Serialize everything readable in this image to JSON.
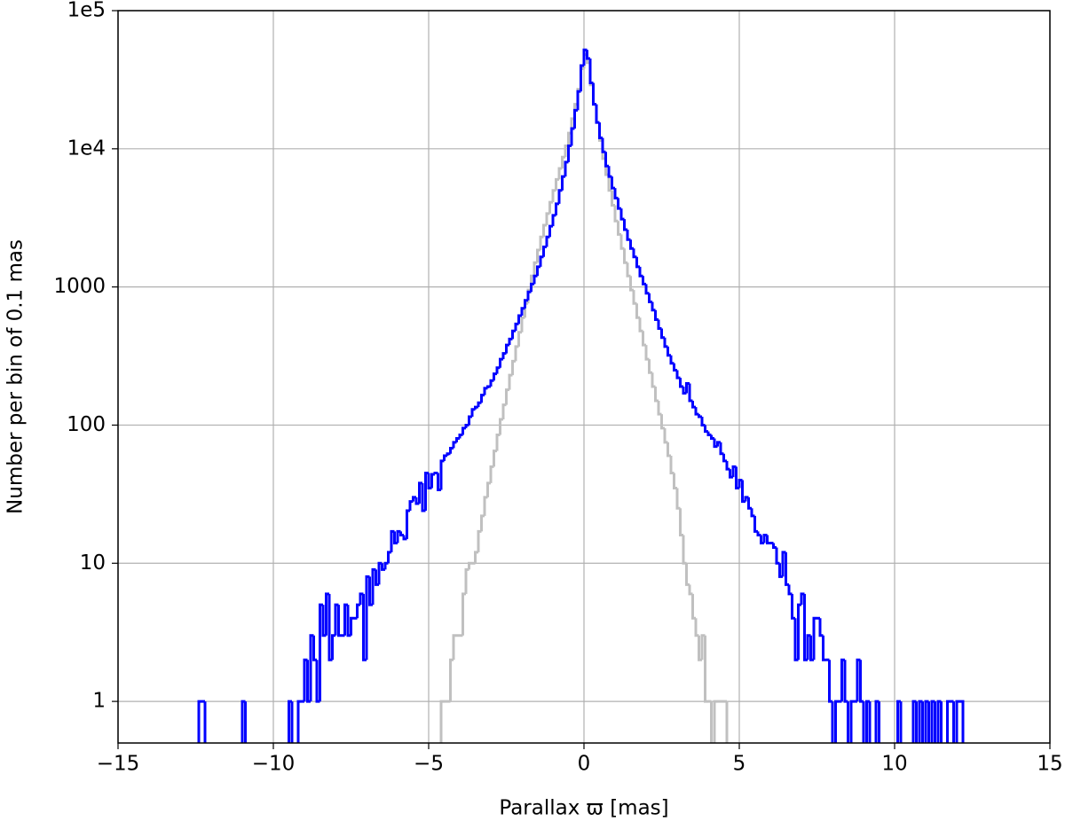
{
  "chart_data": {
    "type": "histogram",
    "x_label": "Parallax ϖ [mas]",
    "y_label": "Number per bin of 0.1 mas",
    "xlim": [
      -15,
      15
    ],
    "xticks": [
      {
        "value": -15,
        "label": "−15"
      },
      {
        "value": -10,
        "label": "−10"
      },
      {
        "value": -5,
        "label": "−5"
      },
      0,
      5,
      10,
      15
    ],
    "ylim": [
      0.5,
      100000
    ],
    "yticks": [
      1,
      10,
      100,
      1000,
      {
        "value": 10000,
        "label": "1e4"
      },
      {
        "value": 100000,
        "label": "1e5"
      }
    ],
    "y_scale": "log",
    "grid": true,
    "bins": [
      -12.5,
      -12.4,
      -12.3,
      -12.2,
      -12.1,
      -12.0,
      -11.9,
      -11.8,
      -11.7,
      -11.6,
      -11.5,
      -11.4,
      -11.3,
      -11.2,
      -11.1,
      -11.0,
      -10.9,
      -10.8,
      -10.7,
      -10.6,
      -10.5,
      -10.4,
      -10.3,
      -10.2,
      -10.1,
      -10.0,
      -9.9,
      -9.8,
      -9.7,
      -9.6,
      -9.5,
      -9.4,
      -9.3,
      -9.2,
      -9.1,
      -9.0,
      -8.9,
      -8.8,
      -8.7,
      -8.6,
      -8.5,
      -8.4,
      -8.3,
      -8.2,
      -8.1,
      -8.0,
      -7.9,
      -7.8,
      -7.7,
      -7.6,
      -7.5,
      -7.4,
      -7.3,
      -7.2,
      -7.1,
      -7.0,
      -6.9,
      -6.8,
      -6.7,
      -6.6,
      -6.5,
      -6.4,
      -6.3,
      -6.2,
      -6.1,
      -6.0,
      -5.9,
      -5.8,
      -5.7,
      -5.6,
      -5.5,
      -5.4,
      -5.3,
      -5.2,
      -5.1,
      -5.0,
      -4.9,
      -4.8,
      -4.7,
      -4.6,
      -4.5,
      -4.4,
      -4.3,
      -4.2,
      -4.1,
      -4.0,
      -3.9,
      -3.8,
      -3.7,
      -3.6,
      -3.5,
      -3.4,
      -3.3,
      -3.2,
      -3.1,
      -3.0,
      -2.9,
      -2.8,
      -2.7,
      -2.6,
      -2.5,
      -2.4,
      -2.3,
      -2.2,
      -2.1,
      -2.0,
      -1.9,
      -1.8,
      -1.7,
      -1.6,
      -1.5,
      -1.4,
      -1.3,
      -1.2,
      -1.1,
      -1.0,
      -0.9,
      -0.8,
      -0.7,
      -0.6,
      -0.5,
      -0.4,
      -0.3,
      -0.2,
      -0.1,
      0.0,
      0.1,
      0.2,
      0.3,
      0.4,
      0.5,
      0.6,
      0.7,
      0.8,
      0.9,
      1.0,
      1.1,
      1.2,
      1.3,
      1.4,
      1.5,
      1.6,
      1.7,
      1.8,
      1.9,
      2.0,
      2.1,
      2.2,
      2.3,
      2.4,
      2.5,
      2.6,
      2.7,
      2.8,
      2.9,
      3.0,
      3.1,
      3.2,
      3.3,
      3.4,
      3.5,
      3.6,
      3.7,
      3.8,
      3.9,
      4.0,
      4.1,
      4.2,
      4.3,
      4.4,
      4.5,
      4.6,
      4.7,
      4.8,
      4.9,
      5.0,
      5.1,
      5.2,
      5.3,
      5.4,
      5.5,
      5.6,
      5.7,
      5.8,
      5.9,
      6.0,
      6.1,
      6.2,
      6.3,
      6.4,
      6.5,
      6.6,
      6.7,
      6.8,
      6.9,
      7.0,
      7.1,
      7.2,
      7.3,
      7.4,
      7.5,
      7.6,
      7.7,
      7.8,
      7.9,
      8.0,
      8.1,
      8.2,
      8.3,
      8.4,
      8.5,
      8.6,
      8.7,
      8.8,
      8.9,
      9.0,
      9.1,
      9.2,
      9.3,
      9.4,
      9.5,
      9.6,
      9.7,
      9.8,
      9.9,
      10.0,
      10.1,
      10.2,
      10.3,
      10.4,
      10.5,
      10.6,
      10.7,
      10.8,
      10.9,
      11.0,
      11.1,
      11.2,
      11.3,
      11.4,
      11.5,
      11.6,
      11.7,
      11.8,
      11.9,
      12.0,
      12.1,
      12.2
    ],
    "series": [
      {
        "color": "#c0c0c0",
        "values": [
          0,
          0,
          0,
          0,
          0,
          0,
          0,
          0,
          0,
          0,
          0,
          0,
          0,
          0,
          0,
          0,
          0,
          0,
          0,
          0,
          0,
          0,
          0,
          0,
          0,
          0,
          0,
          0,
          0,
          0,
          0,
          0,
          0,
          0,
          0,
          0,
          0,
          0,
          0,
          0,
          0,
          0,
          0,
          0,
          0,
          0,
          0,
          0,
          0,
          0,
          0,
          0,
          0,
          0,
          0,
          0,
          0,
          0,
          0,
          0,
          0,
          0,
          0,
          0,
          0,
          0,
          0,
          0,
          0,
          0,
          0,
          0,
          0,
          0,
          0,
          0,
          0,
          0,
          0,
          1,
          1,
          1,
          2,
          3,
          3,
          3,
          6,
          9,
          10,
          10,
          12,
          17,
          22,
          30,
          38,
          50,
          65,
          85,
          110,
          140,
          180,
          230,
          290,
          370,
          470,
          600,
          760,
          950,
          1200,
          1500,
          1850,
          2300,
          2800,
          3400,
          4100,
          5000,
          6000,
          7200,
          8700,
          10500,
          13000,
          16500,
          21000,
          27000,
          38000,
          48000,
          42000,
          29000,
          21000,
          15500,
          11500,
          8500,
          6500,
          5000,
          3900,
          3000,
          2400,
          1900,
          1500,
          1200,
          950,
          760,
          600,
          480,
          380,
          300,
          240,
          190,
          150,
          120,
          95,
          75,
          60,
          45,
          35,
          25,
          16,
          10,
          7,
          6,
          4,
          3,
          2,
          3,
          1,
          1,
          0,
          1,
          1,
          1,
          1,
          0,
          0,
          0,
          0,
          0,
          0,
          0,
          0,
          0,
          0,
          0,
          0,
          0,
          0,
          0,
          0,
          0,
          0,
          0,
          0,
          0,
          0,
          0,
          0,
          0,
          0,
          0,
          0,
          0,
          0,
          0,
          0,
          0,
          0,
          0,
          0,
          0,
          0,
          0,
          0,
          0,
          0,
          0,
          0,
          0,
          0,
          0,
          0,
          0,
          0,
          0,
          0,
          0,
          0,
          0,
          0,
          0,
          0,
          0,
          0,
          0,
          0,
          0,
          0,
          0,
          0,
          0,
          0,
          0,
          0,
          0,
          0,
          0,
          0,
          0,
          0
        ]
      },
      {
        "color": "#0000ff",
        "values": [
          0,
          1,
          1,
          0,
          0,
          0,
          0,
          0,
          0,
          0,
          0,
          0,
          0,
          0,
          0,
          1,
          0,
          0,
          0,
          0,
          0,
          0,
          0,
          0,
          0,
          0,
          0,
          0,
          0,
          0,
          1,
          0,
          0,
          1,
          1,
          2,
          1,
          3,
          2,
          1,
          5,
          3,
          6,
          2,
          3,
          5,
          3,
          3,
          5,
          3,
          4,
          4,
          5,
          6,
          2,
          8,
          5,
          9,
          7,
          10,
          9,
          10,
          12,
          17,
          14,
          17,
          16,
          15,
          24,
          28,
          30,
          27,
          38,
          24,
          45,
          35,
          44,
          45,
          34,
          55,
          60,
          62,
          68,
          75,
          80,
          85,
          95,
          100,
          115,
          130,
          135,
          145,
          165,
          185,
          190,
          210,
          235,
          260,
          300,
          330,
          380,
          420,
          480,
          540,
          620,
          700,
          800,
          920,
          1050,
          1200,
          1400,
          1650,
          1950,
          2300,
          2750,
          3300,
          4000,
          5000,
          6300,
          8000,
          10500,
          14000,
          19000,
          26000,
          40000,
          52000,
          45000,
          30000,
          21000,
          15500,
          12000,
          9500,
          7500,
          6300,
          5200,
          4400,
          3700,
          3100,
          2600,
          2200,
          1900,
          1650,
          1400,
          1200,
          1050,
          900,
          780,
          680,
          580,
          500,
          430,
          370,
          320,
          280,
          250,
          220,
          190,
          170,
          200,
          150,
          135,
          120,
          115,
          100,
          90,
          85,
          80,
          70,
          75,
          62,
          55,
          48,
          42,
          50,
          35,
          40,
          28,
          30,
          25,
          22,
          17,
          16,
          14,
          16,
          14,
          14,
          13,
          10,
          8,
          12,
          7,
          6,
          4,
          2,
          5,
          6,
          2,
          3,
          2,
          4,
          4,
          3,
          2,
          2,
          1,
          0,
          1,
          1,
          2,
          1,
          0,
          1,
          1,
          2,
          1,
          0,
          1,
          0,
          0,
          1,
          0,
          0,
          0,
          0,
          0,
          0,
          1,
          0,
          0,
          0,
          0,
          1,
          0,
          1,
          0,
          1,
          0,
          1,
          0,
          1,
          0,
          0,
          1,
          1,
          0,
          1,
          1
        ]
      }
    ]
  }
}
